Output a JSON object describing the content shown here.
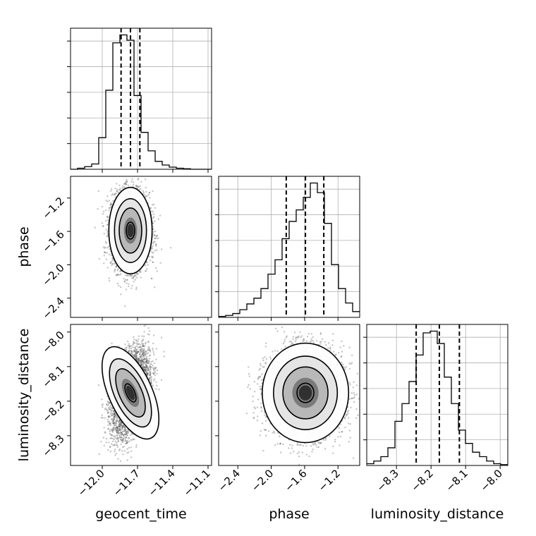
{
  "chart_data": {
    "type": "corner",
    "parameters": [
      "geocent_time",
      "phase",
      "luminosity_distance"
    ],
    "axis_labels": {
      "geocent_time": "geocent_time",
      "phase": "phase",
      "luminosity_distance": "luminosity_distance"
    },
    "ranges": {
      "geocent_time": [
        -12.27,
        -11.07
      ],
      "phase": [
        -2.63,
        -0.94
      ],
      "luminosity_distance": [
        -8.386,
        -7.978
      ]
    },
    "ticks": {
      "geocent_time": [
        {
          "value": -12.0,
          "label": "−12.0"
        },
        {
          "value": -11.7,
          "label": "−11.7"
        },
        {
          "value": -11.4,
          "label": "−11.4"
        },
        {
          "value": -11.1,
          "label": "−11.1"
        }
      ],
      "phase": [
        {
          "value": -2.4,
          "label": "−2.4"
        },
        {
          "value": -2.0,
          "label": "−2.0"
        },
        {
          "value": -1.6,
          "label": "−1.6"
        },
        {
          "value": -1.2,
          "label": "−1.2"
        }
      ],
      "luminosity_distance": [
        {
          "value": -8.3,
          "label": "−8.3"
        },
        {
          "value": -8.2,
          "label": "−8.2"
        },
        {
          "value": -8.1,
          "label": "−8.1"
        },
        {
          "value": -8.0,
          "label": "−8.0"
        }
      ]
    },
    "quantiles": {
      "geocent_time": [
        -11.84,
        -11.76,
        -11.68
      ],
      "phase": [
        -1.82,
        -1.59,
        -1.37
      ],
      "luminosity_distance": [
        -8.243,
        -8.176,
        -8.118
      ]
    },
    "histograms": {
      "geocent_time": {
        "bin_start": -12.27,
        "bin_width": 0.06,
        "counts": [
          0,
          2,
          5,
          10,
          60,
          150,
          240,
          255,
          245,
          140,
          70,
          35,
          15,
          8,
          4,
          2,
          1,
          0,
          0,
          0
        ]
      },
      "phase": {
        "bin_start": -2.63,
        "bin_width": 0.0845,
        "counts": [
          1,
          2,
          4,
          8,
          14,
          20,
          30,
          45,
          60,
          82,
          100,
          112,
          125,
          140,
          130,
          98,
          55,
          30,
          15,
          6
        ]
      },
      "luminosity_distance": {
        "bin_start": -8.386,
        "bin_width": 0.0204,
        "counts": [
          2,
          5,
          10,
          20,
          50,
          70,
          95,
          125,
          150,
          152,
          138,
          100,
          70,
          40,
          25,
          15,
          10,
          5,
          2,
          1
        ]
      }
    },
    "y_tick_labels_hidden": true,
    "grid": true,
    "scatter_points": 4000
  }
}
